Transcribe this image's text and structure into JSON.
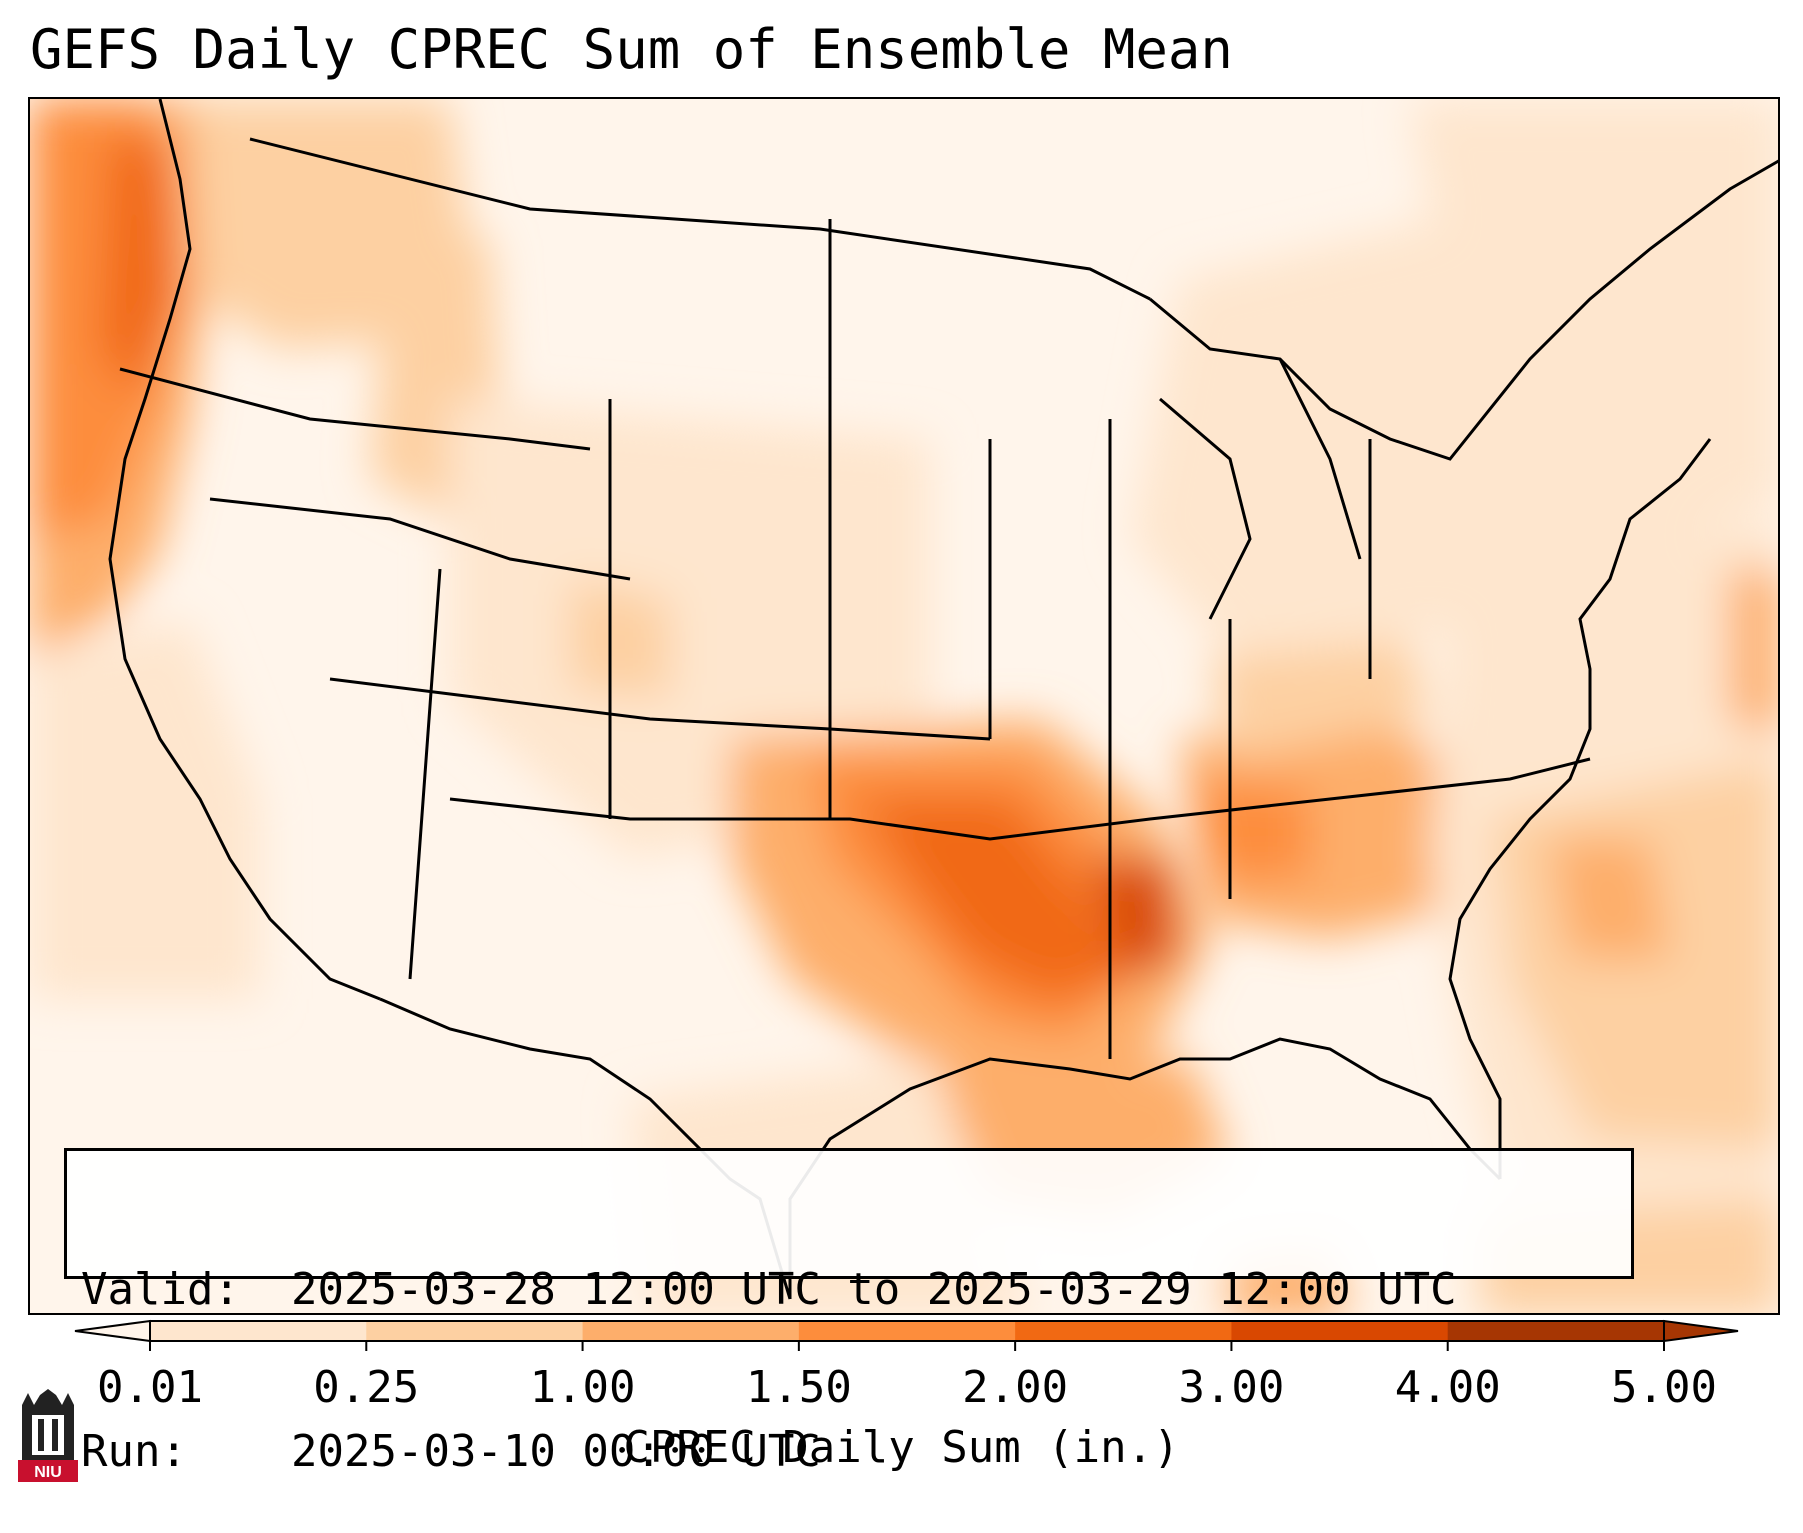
{
  "title": "GEFS Daily CPREC Sum of Ensemble Mean",
  "info": {
    "valid_label": "Valid:",
    "valid_value": "2025-03-28 12:00 UTC to 2025-03-29 12:00 UTC",
    "run_label": "Run:",
    "run_value": "2025-03-10 00:00 UTC"
  },
  "colorbar": {
    "ticks": [
      "0.01",
      "0.25",
      "1.00",
      "1.50",
      "2.00",
      "3.00",
      "4.00",
      "5.00"
    ],
    "colors": [
      "#fff5eb",
      "#fee6ce",
      "#fdd0a2",
      "#fdae6b",
      "#fd8d3c",
      "#f16913",
      "#d94801",
      "#a63603"
    ],
    "title": "CPREC Daily Sum (in.)"
  },
  "logo": {
    "text": "NIU"
  }
}
